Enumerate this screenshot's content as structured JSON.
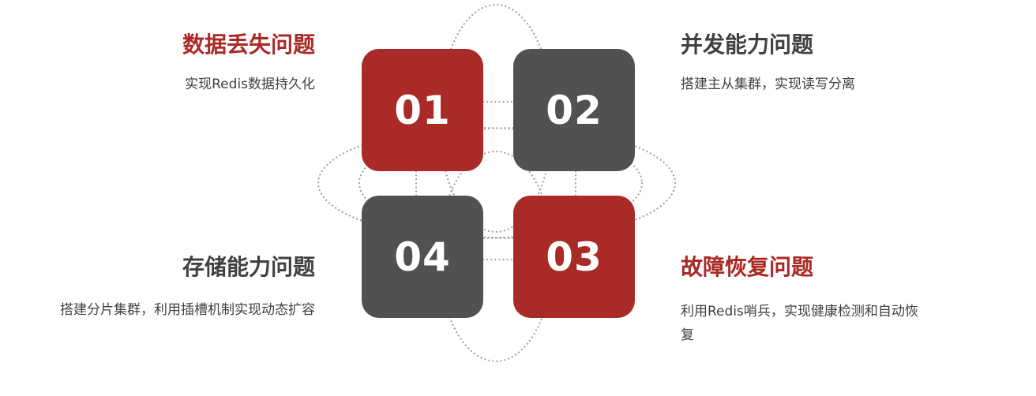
{
  "colors": {
    "red": "#a92a26",
    "gray": "#4f5250",
    "dark_text": "#404040",
    "dotted_line": "#a0a0a0"
  },
  "boxes": [
    {
      "id": "01",
      "number": "01",
      "color": "red"
    },
    {
      "id": "02",
      "number": "02",
      "color": "gray"
    },
    {
      "id": "03",
      "number": "03",
      "color": "red"
    },
    {
      "id": "04",
      "number": "04",
      "color": "gray"
    }
  ],
  "items": [
    {
      "number": "01",
      "title": "数据丢失问题",
      "title_color": "red",
      "description": "实现Redis数据持久化"
    },
    {
      "number": "02",
      "title": "并发能力问题",
      "title_color": "dark",
      "description": "搭建主从集群，实现读写分离"
    },
    {
      "number": "03",
      "title": "故障恢复问题",
      "title_color": "red",
      "description": "利用Redis哨兵，实现健康检测和自动恢复"
    },
    {
      "number": "04",
      "title": "存储能力问题",
      "title_color": "dark",
      "description": "搭建分片集群，利用插槽机制实现动态扩容"
    }
  ]
}
